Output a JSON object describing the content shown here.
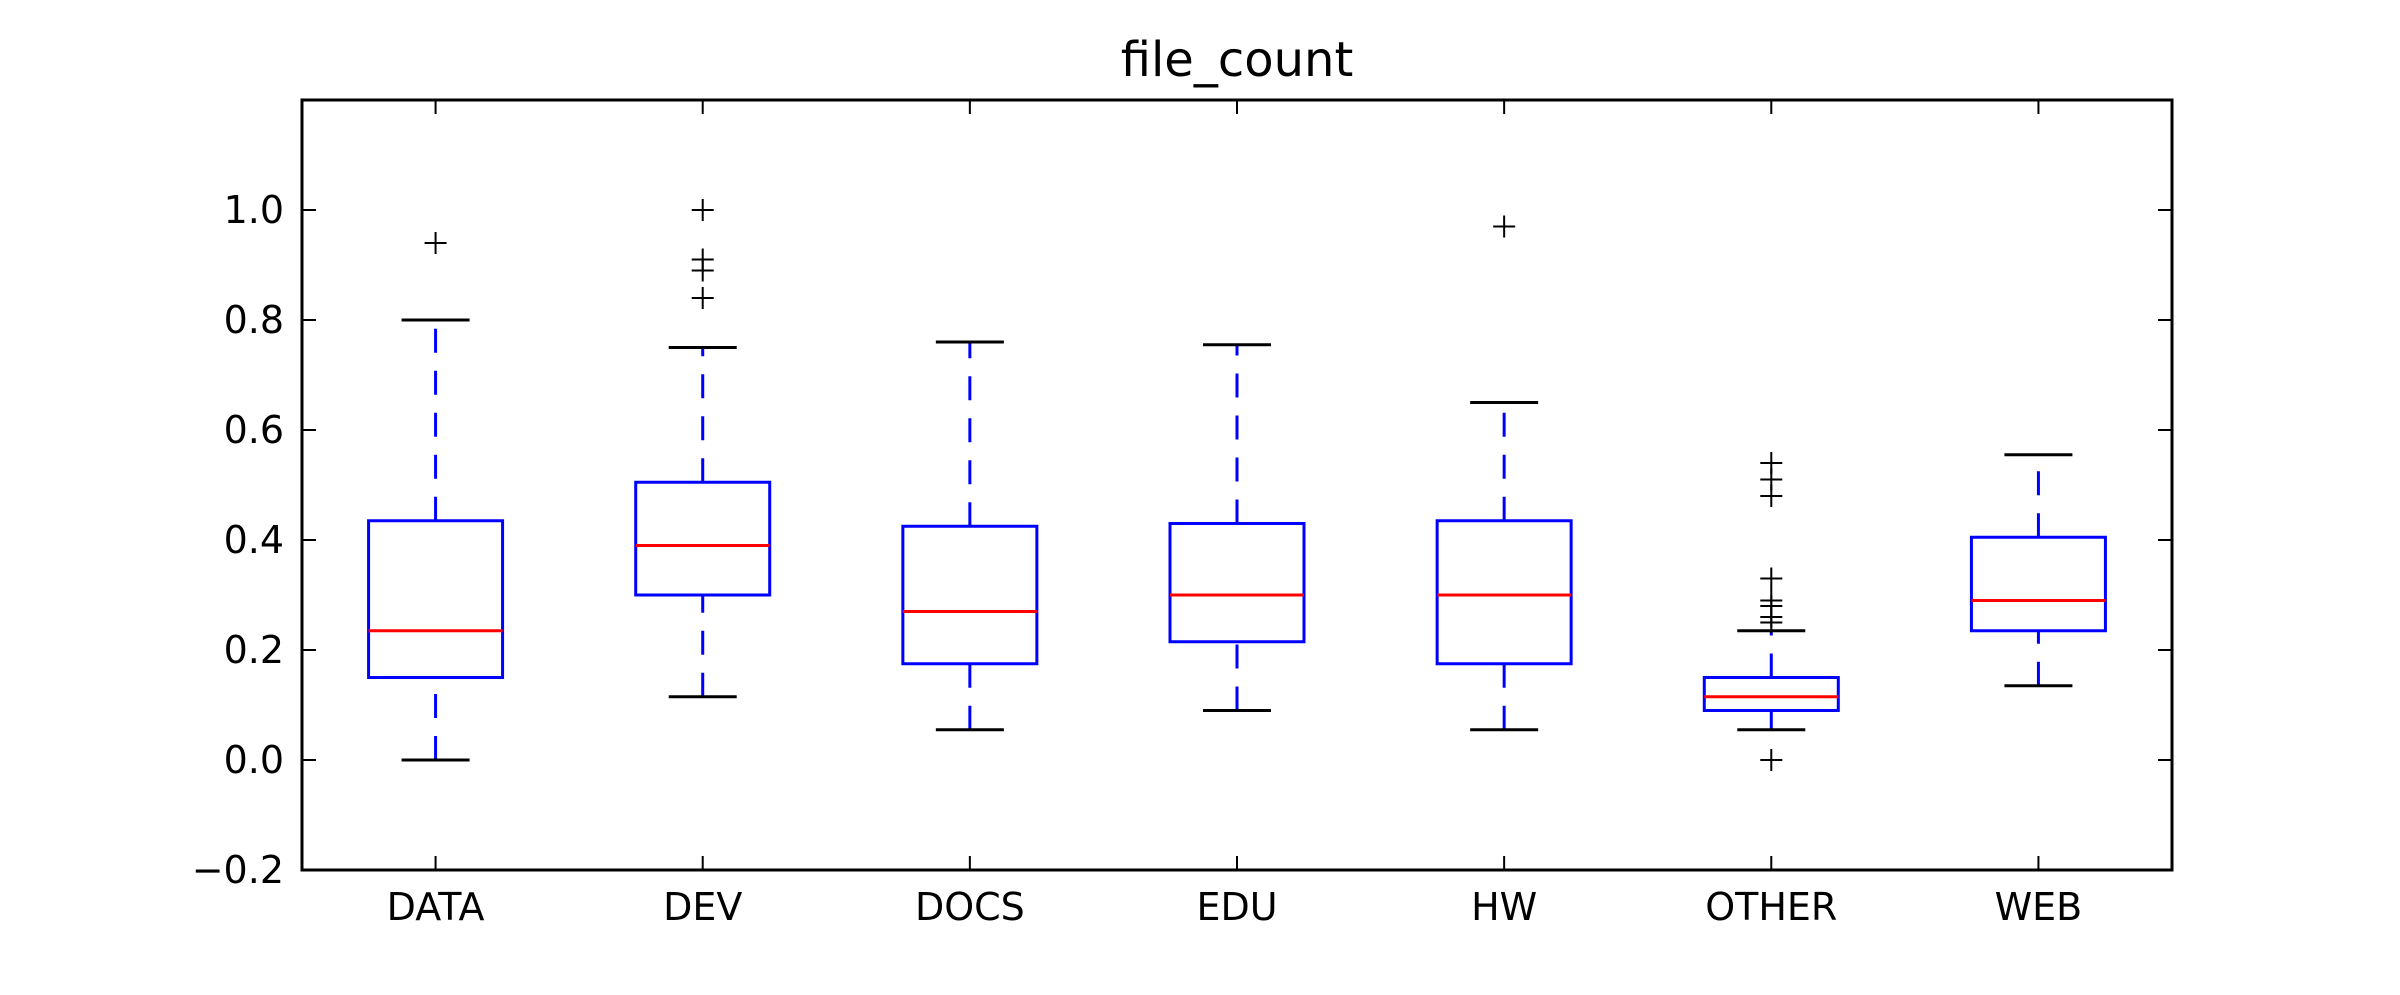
{
  "chart_data": {
    "type": "box",
    "title": "file_count",
    "xlabel": "",
    "ylabel": "",
    "ylim": [
      -0.2,
      1.2
    ],
    "yticks": [
      -0.2,
      0.0,
      0.2,
      0.4,
      0.6,
      0.8,
      1.0
    ],
    "ytick_labels": [
      "−0.2",
      "0.0",
      "0.2",
      "0.4",
      "0.6",
      "0.8",
      "1.0"
    ],
    "grid": false,
    "colors": {
      "box": "#0000ff",
      "median": "#ff0000",
      "cap": "#000000",
      "flier": "#000000"
    },
    "categories": [
      "DATA",
      "DEV",
      "DOCS",
      "EDU",
      "HW",
      "OTHER",
      "WEB"
    ],
    "boxes": [
      {
        "label": "DATA",
        "whislo": 0.0,
        "q1": 0.15,
        "med": 0.235,
        "q3": 0.435,
        "whishi": 0.8,
        "fliers": [
          0.94
        ]
      },
      {
        "label": "DEV",
        "whislo": 0.115,
        "q1": 0.3,
        "med": 0.39,
        "q3": 0.505,
        "whishi": 0.75,
        "fliers": [
          0.84,
          0.89,
          0.91,
          1.0
        ]
      },
      {
        "label": "DOCS",
        "whislo": 0.055,
        "q1": 0.175,
        "med": 0.27,
        "q3": 0.425,
        "whishi": 0.76,
        "fliers": []
      },
      {
        "label": "EDU",
        "whislo": 0.09,
        "q1": 0.215,
        "med": 0.3,
        "q3": 0.43,
        "whishi": 0.755,
        "fliers": []
      },
      {
        "label": "HW",
        "whislo": 0.055,
        "q1": 0.175,
        "med": 0.3,
        "q3": 0.435,
        "whishi": 0.65,
        "fliers": [
          0.97
        ]
      },
      {
        "label": "OTHER",
        "whislo": 0.055,
        "q1": 0.09,
        "med": 0.115,
        "q3": 0.15,
        "whishi": 0.235,
        "fliers": [
          0.0,
          0.25,
          0.26,
          0.28,
          0.29,
          0.33,
          0.48,
          0.51,
          0.54
        ]
      },
      {
        "label": "WEB",
        "whislo": 0.135,
        "q1": 0.235,
        "med": 0.29,
        "q3": 0.405,
        "whishi": 0.555,
        "fliers": []
      }
    ]
  }
}
